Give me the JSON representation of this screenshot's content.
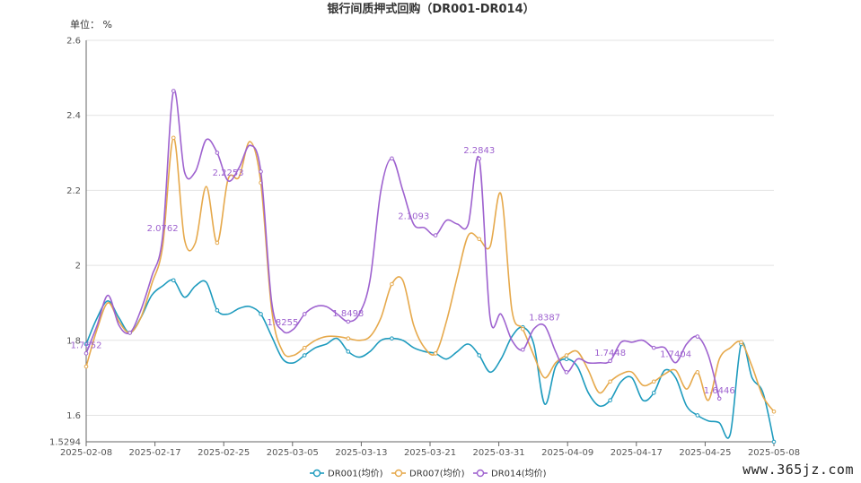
{
  "chart_data": {
    "type": "line",
    "title": "银行间质押式回购（DR001-DR014）",
    "unit_label": "单位： %",
    "ylim": [
      1.5294,
      2.6
    ],
    "y_ticks": [
      "2.6",
      "2.4",
      "2.2",
      "2",
      "1.8",
      "1.6",
      "1.5294"
    ],
    "x_ticks": [
      "2025-02-08",
      "2025-02-17",
      "2025-02-25",
      "2025-03-05",
      "2025-03-13",
      "2025-03-21",
      "2025-03-31",
      "2025-04-09",
      "2025-04-17",
      "2025-04-25",
      "2025-05-08"
    ],
    "grid": true,
    "legend_position": "bottom",
    "series": [
      {
        "name": "DR001(均价)",
        "color": "#1e9bbe",
        "points": [
          [
            0,
            1.79
          ],
          [
            1,
            1.86
          ],
          [
            2,
            1.905
          ],
          [
            3,
            1.86
          ],
          [
            4,
            1.82
          ],
          [
            5,
            1.86
          ],
          [
            6,
            1.92
          ],
          [
            7,
            1.945
          ],
          [
            8,
            1.96
          ],
          [
            9,
            1.915
          ],
          [
            10,
            1.945
          ],
          [
            11,
            1.955
          ],
          [
            12,
            1.88
          ],
          [
            13,
            1.87
          ],
          [
            14,
            1.885
          ],
          [
            15,
            1.89
          ],
          [
            16,
            1.87
          ],
          [
            17,
            1.81
          ],
          [
            18,
            1.75
          ],
          [
            19,
            1.74
          ],
          [
            20,
            1.76
          ],
          [
            21,
            1.78
          ],
          [
            22,
            1.79
          ],
          [
            23,
            1.805
          ],
          [
            24,
            1.77
          ],
          [
            25,
            1.755
          ],
          [
            26,
            1.77
          ],
          [
            27,
            1.8
          ],
          [
            28,
            1.805
          ],
          [
            29,
            1.8
          ],
          [
            30,
            1.78
          ],
          [
            31,
            1.77
          ],
          [
            32,
            1.765
          ],
          [
            33,
            1.75
          ],
          [
            34,
            1.77
          ],
          [
            35,
            1.79
          ],
          [
            36,
            1.76
          ],
          [
            37,
            1.715
          ],
          [
            38,
            1.75
          ],
          [
            39,
            1.81
          ],
          [
            40,
            1.835
          ],
          [
            41,
            1.79
          ],
          [
            42,
            1.63
          ],
          [
            43,
            1.73
          ],
          [
            44,
            1.75
          ],
          [
            45,
            1.73
          ],
          [
            46,
            1.66
          ],
          [
            47,
            1.625
          ],
          [
            48,
            1.64
          ],
          [
            49,
            1.69
          ],
          [
            50,
            1.7
          ],
          [
            51,
            1.64
          ],
          [
            52,
            1.66
          ],
          [
            53,
            1.72
          ],
          [
            54,
            1.7
          ],
          [
            55,
            1.625
          ],
          [
            56,
            1.6
          ],
          [
            57,
            1.585
          ],
          [
            58,
            1.58
          ],
          [
            59,
            1.55
          ],
          [
            60,
            1.79
          ],
          [
            61,
            1.7
          ],
          [
            62,
            1.66
          ],
          [
            63,
            1.5294
          ]
        ],
        "labels": []
      },
      {
        "name": "DR007(均价)",
        "color": "#e6a94c",
        "points": [
          [
            0,
            1.73
          ],
          [
            1,
            1.83
          ],
          [
            2,
            1.9
          ],
          [
            3,
            1.85
          ],
          [
            4,
            1.82
          ],
          [
            5,
            1.86
          ],
          [
            6,
            1.95
          ],
          [
            7,
            2.05
          ],
          [
            8,
            2.34
          ],
          [
            9,
            2.07
          ],
          [
            10,
            2.06
          ],
          [
            11,
            2.21
          ],
          [
            12,
            2.06
          ],
          [
            13,
            2.23
          ],
          [
            14,
            2.235
          ],
          [
            15,
            2.33
          ],
          [
            16,
            2.22
          ],
          [
            17,
            1.88
          ],
          [
            18,
            1.77
          ],
          [
            19,
            1.76
          ],
          [
            20,
            1.78
          ],
          [
            21,
            1.8
          ],
          [
            22,
            1.81
          ],
          [
            23,
            1.81
          ],
          [
            24,
            1.805
          ],
          [
            25,
            1.8
          ],
          [
            26,
            1.81
          ],
          [
            27,
            1.86
          ],
          [
            28,
            1.95
          ],
          [
            29,
            1.96
          ],
          [
            30,
            1.84
          ],
          [
            31,
            1.78
          ],
          [
            32,
            1.765
          ],
          [
            33,
            1.85
          ],
          [
            34,
            1.97
          ],
          [
            35,
            2.08
          ],
          [
            36,
            2.07
          ],
          [
            37,
            2.05
          ],
          [
            38,
            2.19
          ],
          [
            39,
            1.88
          ],
          [
            40,
            1.83
          ],
          [
            41,
            1.76
          ],
          [
            42,
            1.7
          ],
          [
            43,
            1.74
          ],
          [
            44,
            1.76
          ],
          [
            45,
            1.77
          ],
          [
            46,
            1.72
          ],
          [
            47,
            1.66
          ],
          [
            48,
            1.69
          ],
          [
            49,
            1.71
          ],
          [
            50,
            1.715
          ],
          [
            51,
            1.68
          ],
          [
            52,
            1.69
          ],
          [
            53,
            1.71
          ],
          [
            54,
            1.72
          ],
          [
            55,
            1.67
          ],
          [
            56,
            1.715
          ],
          [
            57,
            1.64
          ],
          [
            58,
            1.75
          ],
          [
            59,
            1.78
          ],
          [
            60,
            1.795
          ],
          [
            61,
            1.73
          ],
          [
            62,
            1.65
          ],
          [
            63,
            1.61
          ]
        ],
        "labels": []
      },
      {
        "name": "DR014(均价)",
        "color": "#9e62cf",
        "points": [
          [
            0,
            1.7652
          ],
          [
            1,
            1.84
          ],
          [
            2,
            1.92
          ],
          [
            3,
            1.84
          ],
          [
            4,
            1.82
          ],
          [
            5,
            1.88
          ],
          [
            6,
            1.97
          ],
          [
            7,
            2.0762
          ],
          [
            8,
            2.465
          ],
          [
            9,
            2.25
          ],
          [
            10,
            2.25
          ],
          [
            11,
            2.335
          ],
          [
            12,
            2.3
          ],
          [
            13,
            2.2253
          ],
          [
            14,
            2.26
          ],
          [
            15,
            2.32
          ],
          [
            16,
            2.25
          ],
          [
            17,
            1.9
          ],
          [
            18,
            1.8255
          ],
          [
            19,
            1.83
          ],
          [
            20,
            1.87
          ],
          [
            21,
            1.89
          ],
          [
            22,
            1.89
          ],
          [
            23,
            1.87
          ],
          [
            24,
            1.8498
          ],
          [
            25,
            1.87
          ],
          [
            26,
            1.96
          ],
          [
            27,
            2.2
          ],
          [
            28,
            2.285
          ],
          [
            29,
            2.2
          ],
          [
            30,
            2.1093
          ],
          [
            31,
            2.1
          ],
          [
            32,
            2.08
          ],
          [
            33,
            2.12
          ],
          [
            34,
            2.11
          ],
          [
            35,
            2.11
          ],
          [
            36,
            2.2843
          ],
          [
            37,
            1.86
          ],
          [
            38,
            1.87
          ],
          [
            39,
            1.8
          ],
          [
            40,
            1.775
          ],
          [
            41,
            1.83
          ],
          [
            42,
            1.8387
          ],
          [
            43,
            1.77
          ],
          [
            44,
            1.715
          ],
          [
            45,
            1.75
          ],
          [
            46,
            1.74
          ],
          [
            47,
            1.74
          ],
          [
            48,
            1.7448
          ],
          [
            49,
            1.795
          ],
          [
            50,
            1.795
          ],
          [
            51,
            1.8
          ],
          [
            52,
            1.78
          ],
          [
            53,
            1.78
          ],
          [
            54,
            1.7404
          ],
          [
            55,
            1.79
          ],
          [
            56,
            1.81
          ],
          [
            57,
            1.76
          ],
          [
            58,
            1.6446
          ]
        ],
        "labels": [
          "1.7652",
          "2.0762",
          "2.2253",
          "1.8255",
          "1.8498",
          "2.1093",
          "2.2843",
          "1.8387",
          "1.7448",
          "1.7404",
          "1.6446"
        ]
      }
    ]
  },
  "watermark": "www.365jz.com"
}
